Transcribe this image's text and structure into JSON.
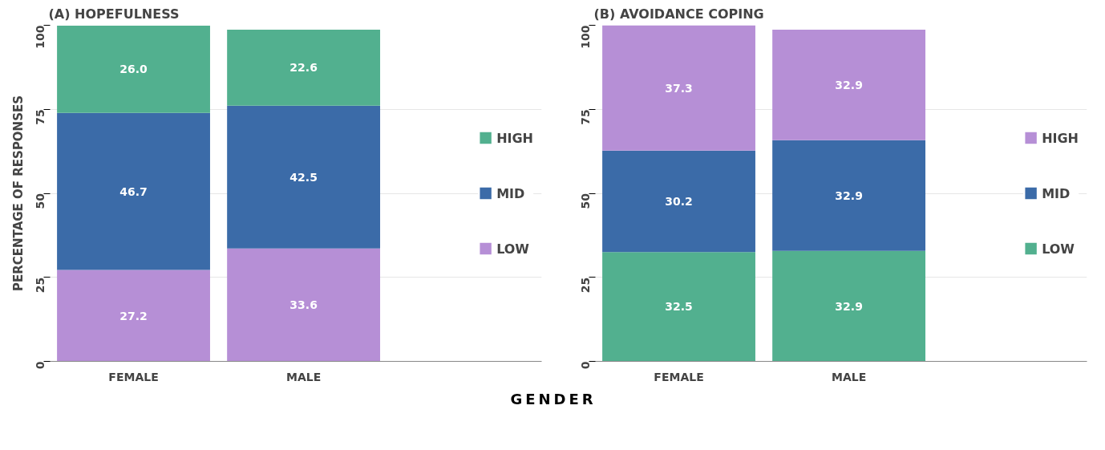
{
  "chart_data": [
    {
      "type": "bar",
      "title": "(A) HOPEFULNESS",
      "ylabel": "PERCENTAGE OF RESPONSES",
      "annotations": [
        "GENDER"
      ],
      "categories": [
        "FEMALE",
        "MALE"
      ],
      "stacked": true,
      "series": [
        {
          "name": "LOW",
          "color": "#b68fd6",
          "values": [
            27.2,
            33.6
          ],
          "value_labels": [
            "27.2",
            "33.6"
          ]
        },
        {
          "name": "MID",
          "color": "#3b6ba8",
          "values": [
            46.7,
            42.5
          ],
          "value_labels": [
            "46.7",
            "42.5"
          ]
        },
        {
          "name": "HIGH",
          "color": "#52b08f",
          "values": [
            26.0,
            22.6
          ],
          "value_labels": [
            "26.0",
            "22.6"
          ]
        }
      ],
      "ylim": [
        0,
        100
      ],
      "yticks": [
        0,
        25,
        50,
        75,
        100
      ],
      "grid": "y",
      "legend": "right"
    },
    {
      "type": "bar",
      "title": "(B) AVOIDANCE COPING",
      "categories": [
        "FEMALE",
        "MALE"
      ],
      "stacked": true,
      "series": [
        {
          "name": "LOW",
          "color": "#52b08f",
          "values": [
            32.5,
            32.9
          ],
          "value_labels": [
            "32.5",
            "32.9"
          ]
        },
        {
          "name": "MID",
          "color": "#3b6ba8",
          "values": [
            30.2,
            32.9
          ],
          "value_labels": [
            "30.2",
            "32.9"
          ]
        },
        {
          "name": "HIGH",
          "color": "#b68fd6",
          "values": [
            37.3,
            32.9
          ],
          "value_labels": [
            "37.3",
            "32.9"
          ]
        }
      ],
      "ylim": [
        0,
        100
      ],
      "yticks": [
        0,
        25,
        50,
        75,
        100
      ],
      "grid": "y",
      "legend": "right"
    }
  ]
}
